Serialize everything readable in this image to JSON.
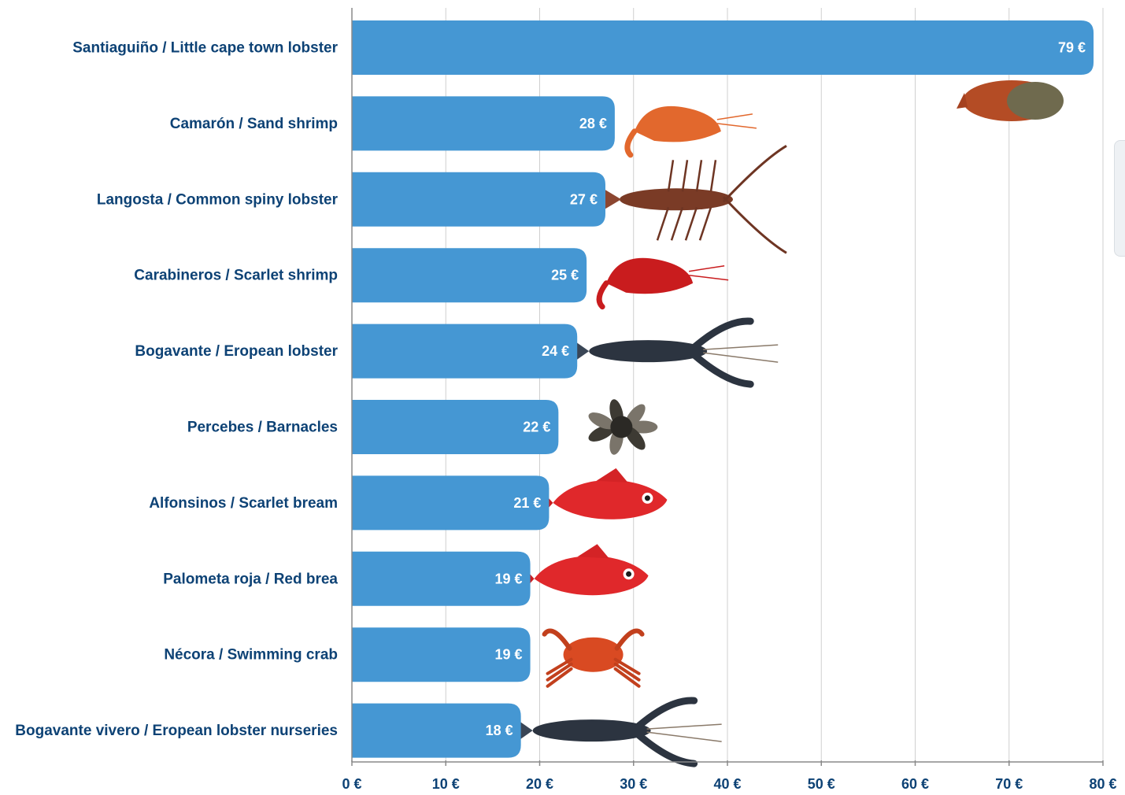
{
  "chart_data": {
    "type": "bar",
    "orientation": "horizontal",
    "categories": [
      "Santiaguiño / Little cape town lobster",
      "Camarón / Sand shrimp",
      "Langosta / Common spiny lobster",
      "Carabineros / Scarlet shrimp",
      "Bogavante / Eropean lobster",
      "Percebes / Barnacles",
      "Alfonsinos / Scarlet bream",
      "Palometa roja / Red brea",
      "Nécora / Swimming crab",
      "Bogavante vivero / Eropean lobster nurseries"
    ],
    "values": [
      79,
      28,
      27,
      25,
      24,
      22,
      21,
      19,
      19,
      18
    ],
    "value_labels": [
      "79 €",
      "28 €",
      "27 €",
      "25 €",
      "24 €",
      "22 €",
      "21 €",
      "19 €",
      "19 €",
      "18 €"
    ],
    "icons": [
      "spiny-lobster-tail-icon",
      "shrimp-icon",
      "spiny-lobster-icon",
      "scarlet-shrimp-icon",
      "european-lobster-icon",
      "barnacles-icon",
      "red-fish-icon",
      "red-fish-icon",
      "crab-icon",
      "european-lobster-icon"
    ],
    "xticks": [
      "0 €",
      "10 €",
      "20 €",
      "30 €",
      "40 €",
      "50 €",
      "60 €",
      "70 €",
      "80 €"
    ],
    "xlim": [
      0,
      80
    ],
    "grid": true,
    "title": "",
    "xlabel": "",
    "ylabel": ""
  },
  "colors": {
    "bar": "#4597d3",
    "label_text": "#0d4275",
    "tick_text": "#0d4275",
    "value_text": "#ffffff",
    "grid": "#cfcfcf",
    "axis": "#8a8a8a"
  }
}
